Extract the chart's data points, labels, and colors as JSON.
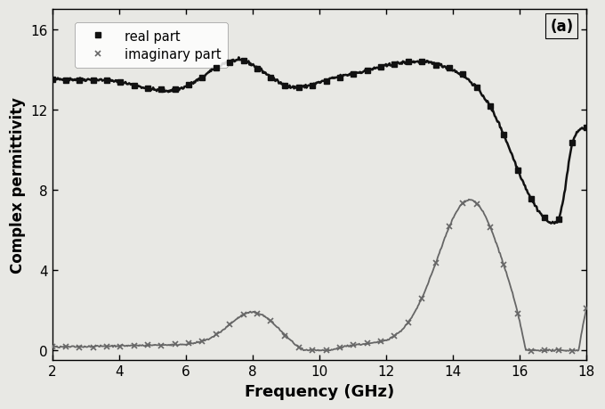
{
  "title_label": "(a)",
  "xlabel": "Frequency (GHz)",
  "ylabel": "Complex permittivity",
  "xlim": [
    2,
    18
  ],
  "ylim": [
    -0.5,
    17
  ],
  "xticks": [
    2,
    4,
    6,
    8,
    10,
    12,
    14,
    16,
    18
  ],
  "yticks": [
    0,
    4,
    8,
    12,
    16
  ],
  "legend_real": "real part",
  "legend_imag": "imaginary part",
  "line_color_real": "#111111",
  "line_color_imag": "#666666",
  "background_color": "#e8e8e4",
  "plot_bg_color": "#e8e8e4"
}
